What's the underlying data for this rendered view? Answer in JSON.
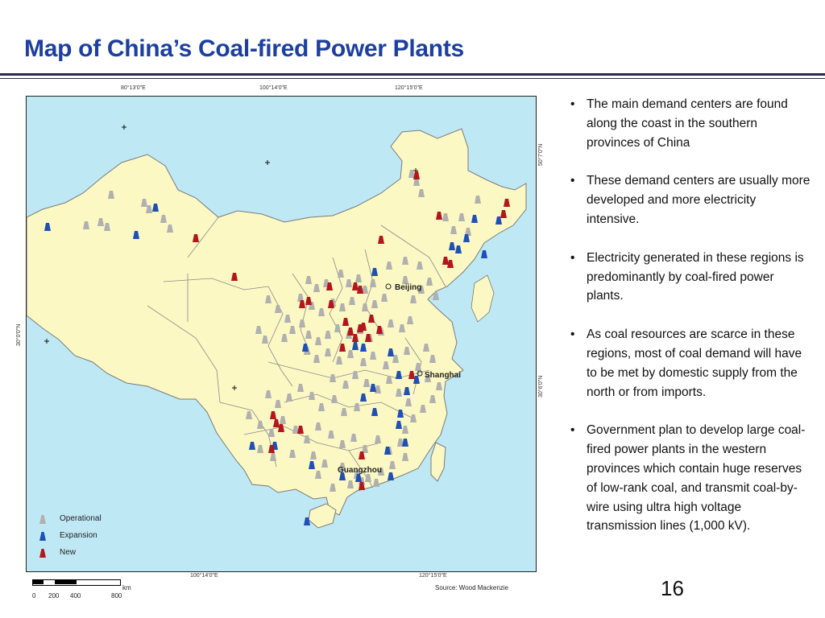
{
  "slide": {
    "title": "Map of China’s Coal-fired Power Plants",
    "page_number": "16"
  },
  "map": {
    "colors": {
      "ocean": "#bfe8f5",
      "land": "#fbf8c4",
      "border": "#7a7a7a",
      "operational": "#b0b0b0",
      "expansion": "#1f50b5",
      "new": "#b3171d"
    },
    "coords": {
      "top": [
        "80°13'0\"E",
        "100°14'0\"E",
        "120°15'0\"E"
      ],
      "bottom": [
        "100°14'0\"E",
        "120°15'0\"E"
      ],
      "left": [
        "30°0'0\"N"
      ],
      "right": [
        "50°7'0\"N",
        "30°6'0\"N"
      ]
    },
    "cities": [
      "Beijing",
      "Shanghai",
      "Guangzhou"
    ],
    "legend": {
      "operational": "Operational",
      "expansion": "Expansion",
      "new": "New"
    },
    "scale": {
      "ticks": [
        "0",
        "200",
        "400",
        "800"
      ],
      "unit": "km"
    },
    "source": "Source: Wood Mackenzie",
    "plant_icons": [
      "operational-plant-icon",
      "expansion-plant-icon",
      "new-plant-icon"
    ]
  },
  "bullets": [
    "The main demand centers are found along the coast in the southern provinces of China",
    "These demand centers are usually more developed and more electricity intensive.",
    "Electricity generated in these regions is predominantly by coal-fired power plants.",
    "As coal resources are scarce in these regions, most of coal demand will have to be met by domestic supply from the north or from imports.",
    "Government plan to develop large coal-fired power plants in the western provinces which contain huge reserves of low-rank coal, and transmit coal-by-wire using ultra high voltage transmission lines (1,000 kV)."
  ]
}
